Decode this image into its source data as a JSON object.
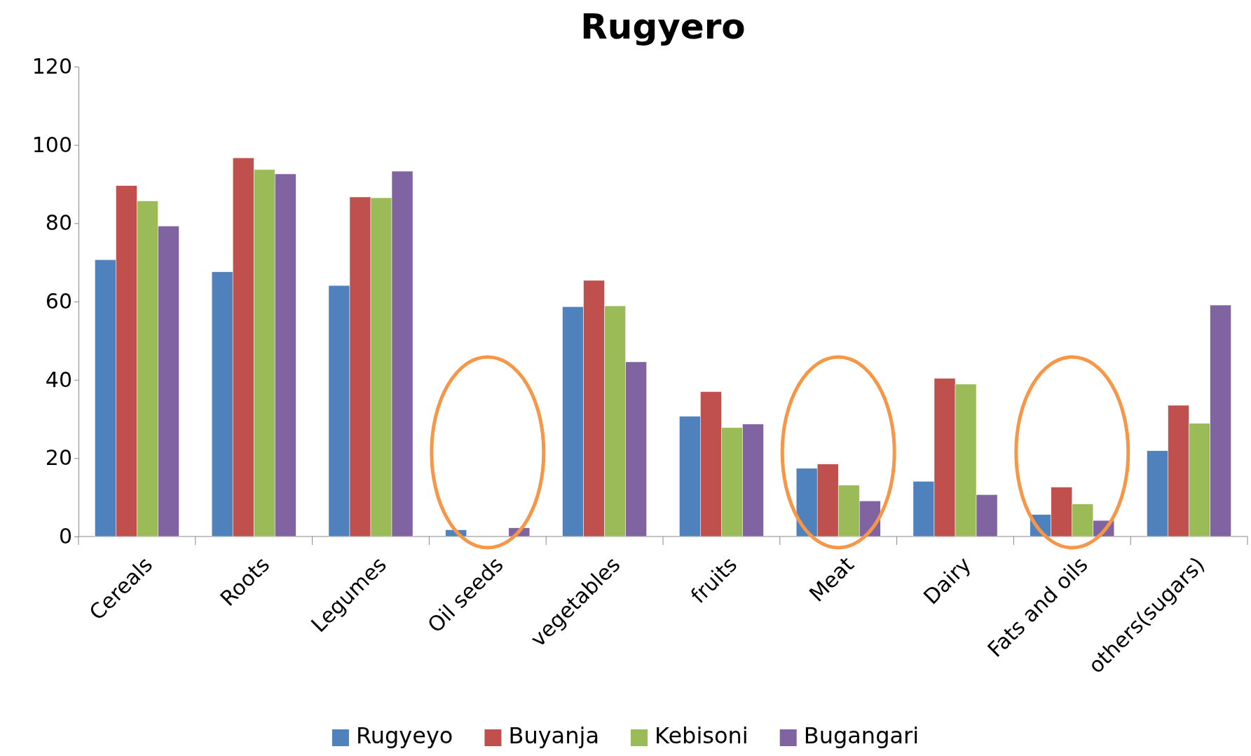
{
  "chart_data": {
    "type": "bar",
    "title": "Rugyero",
    "categories": [
      "Cereals",
      "Roots",
      "Legumes",
      "Oil seeds",
      "vegetables",
      "fruits",
      "Meat",
      "Dairy",
      "Fats and oils",
      "others(sugars)"
    ],
    "series": [
      {
        "name": "Rugyeyo",
        "color": "#4f81bd",
        "values": [
          70.7,
          67.6,
          64.1,
          1.7,
          58.7,
          30.7,
          17.4,
          14.1,
          5.6,
          21.9
        ]
      },
      {
        "name": "Buyanja",
        "color": "#c0504d",
        "values": [
          89.6,
          96.7,
          86.7,
          0,
          65.4,
          37,
          18.5,
          40.4,
          12.6,
          33.5
        ]
      },
      {
        "name": "Kebisoni",
        "color": "#9bbb59",
        "values": [
          85.7,
          93.7,
          86.5,
          0,
          58.9,
          27.8,
          13.1,
          38.9,
          8.3,
          28.9
        ]
      },
      {
        "name": "Bugangari",
        "color": "#8064a2",
        "values": [
          79.3,
          92.6,
          93.3,
          2.2,
          44.6,
          28.7,
          9.1,
          10.7,
          4.1,
          59.1
        ]
      }
    ],
    "ylim": [
      0,
      120
    ],
    "yticks": [
      0,
      20,
      40,
      60,
      80,
      100,
      120
    ],
    "grid": false,
    "legend": "bottom"
  }
}
